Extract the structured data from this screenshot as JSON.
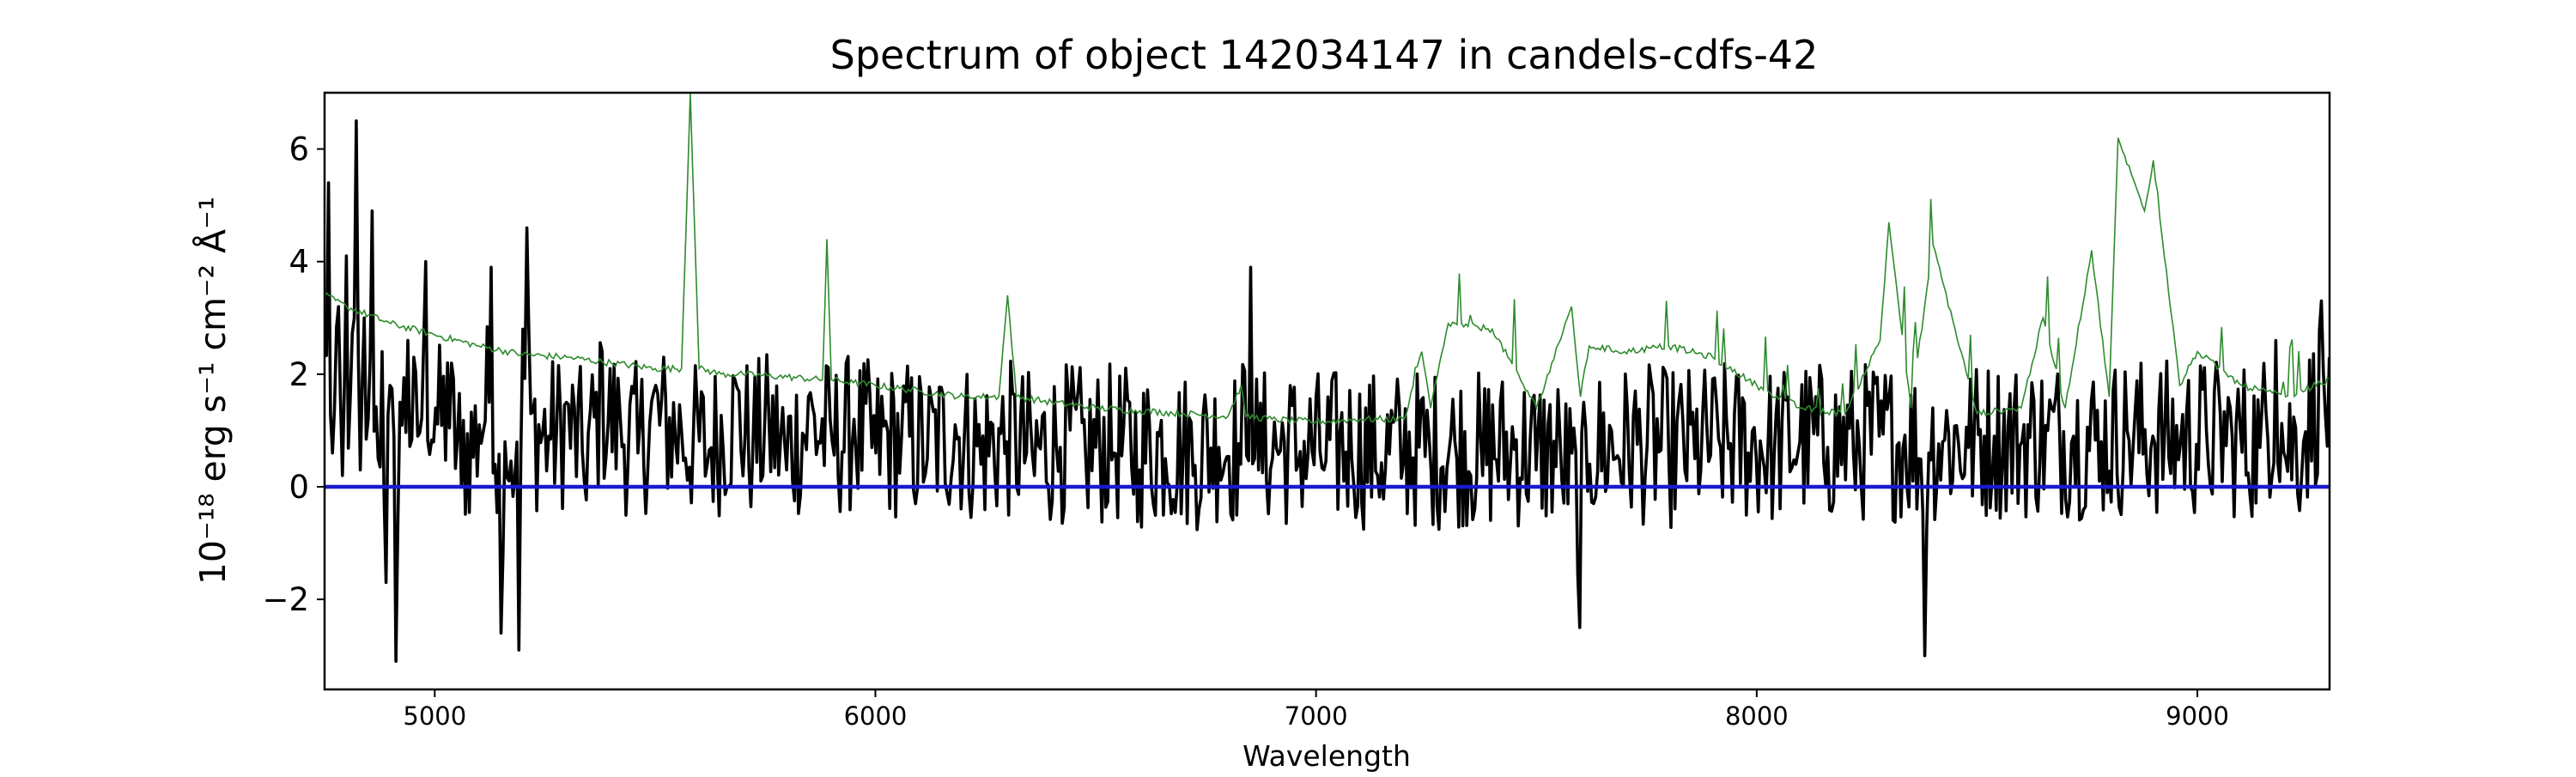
{
  "chart_data": {
    "type": "line",
    "title": "Spectrum of object 142034147 in candels-cdfs-42",
    "xlabel": "Wavelength",
    "ylabel": "10⁻¹⁸ erg s⁻¹ cm⁻² Å⁻¹",
    "xlim": [
      4750,
      9300
    ],
    "ylim": [
      -3.6,
      7.0
    ],
    "xticks": [
      5000,
      6000,
      7000,
      8000,
      9000
    ],
    "xtick_labels": [
      "5000",
      "6000",
      "7000",
      "8000",
      "9000"
    ],
    "yticks": [
      -2,
      0,
      2,
      4,
      6
    ],
    "ytick_labels": [
      "−2",
      "0",
      "2",
      "4",
      "6"
    ],
    "grid": false,
    "series": [
      {
        "key": "spectrum",
        "color": "#000000",
        "style": "noisy-flux",
        "x": [
          4750,
          4760,
          4770,
          4780,
          4790,
          4800,
          4810,
          4820,
          4830,
          4840,
          4850,
          4860,
          4870,
          4880,
          4890,
          4900,
          4910,
          4920,
          4940,
          4960,
          4980,
          5000,
          5030,
          5060,
          5100,
          5130,
          5150,
          5160,
          5180,
          5190,
          5200,
          5210,
          5220,
          5260,
          5300,
          5340,
          5380,
          5420,
          5460,
          5500,
          5560,
          5620,
          5680,
          5720,
          5760,
          5800,
          5850,
          5900,
          5950,
          6000,
          6060,
          6120,
          6180,
          6240,
          6300,
          6360,
          6420,
          6480,
          6540,
          6600,
          6660,
          6720,
          6780,
          6830,
          6850,
          6860,
          6870,
          6900,
          6960,
          7020,
          7080,
          7140,
          7200,
          7260,
          7320,
          7380,
          7440,
          7500,
          7560,
          7600,
          7620,
          7680,
          7740,
          7800,
          7860,
          7920,
          7980,
          8040,
          8100,
          8160,
          8220,
          8280,
          8330,
          8370,
          8380,
          8390,
          8420,
          8480,
          8540,
          8600,
          8660,
          8720,
          8780,
          8840,
          8900,
          8960,
          9020,
          9080,
          9140,
          9180,
          9200,
          9240,
          9280,
          9300
        ],
        "y": [
          2.5,
          5.4,
          0.6,
          3.2,
          0.2,
          4.1,
          1.6,
          6.5,
          0.3,
          3.0,
          1.2,
          4.9,
          0.5,
          2.4,
          -1.7,
          1.8,
          -3.1,
          1.5,
          2.6,
          0.9,
          4.0,
          1.4,
          2.2,
          0.0,
          1.1,
          3.9,
          -2.6,
          0.8,
          0.2,
          -2.9,
          2.8,
          4.6,
          1.3,
          0.9,
          1.5,
          0.1,
          2.4,
          1.3,
          0.6,
          1.8,
          1.0,
          0.4,
          1.9,
          0.7,
          1.3,
          0.3,
          1.6,
          0.8,
          1.2,
          0.6,
          0.9,
          0.5,
          1.1,
          0.4,
          0.8,
          0.2,
          0.7,
          0.4,
          0.6,
          0.3,
          0.5,
          0.2,
          0.7,
          0.4,
          3.9,
          0.5,
          0.3,
          0.5,
          0.4,
          0.3,
          0.5,
          0.2,
          0.4,
          0.3,
          0.5,
          0.2,
          0.4,
          0.3,
          0.1,
          -2.5,
          0.4,
          0.5,
          0.6,
          0.4,
          0.5,
          0.7,
          0.6,
          0.5,
          0.8,
          0.7,
          0.6,
          0.9,
          0.7,
          0.5,
          -3.0,
          0.6,
          0.8,
          0.7,
          0.9,
          0.8,
          1.0,
          0.9,
          0.8,
          1.0,
          0.9,
          0.8,
          1.0,
          0.9,
          0.7,
          2.6,
          0.5,
          0.8,
          3.3,
          2.3
        ]
      },
      {
        "key": "error",
        "color": "#2e8b2e",
        "style": "error-emission",
        "x": [
          4750,
          4800,
          4900,
          5000,
          5100,
          5200,
          5300,
          5400,
          5500,
          5560,
          5580,
          5600,
          5650,
          5700,
          5800,
          5880,
          5890,
          5900,
          5950,
          6000,
          6100,
          6200,
          6280,
          6300,
          6320,
          6400,
          6500,
          6600,
          6700,
          6800,
          6830,
          6840,
          6900,
          7000,
          7100,
          7200,
          7240,
          7260,
          7300,
          7400,
          7500,
          7580,
          7600,
          7620,
          7700,
          7800,
          7900,
          8000,
          8100,
          8200,
          8280,
          8300,
          8350,
          8400,
          8500,
          8600,
          8650,
          8700,
          8760,
          8800,
          8820,
          8880,
          8900,
          8960,
          9000,
          9100,
          9200,
          9300
        ],
        "y": [
          3.4,
          3.2,
          2.9,
          2.7,
          2.5,
          2.35,
          2.3,
          2.2,
          2.1,
          2.1,
          7.0,
          2.1,
          2.0,
          2.0,
          1.95,
          1.9,
          4.4,
          1.9,
          1.85,
          1.8,
          1.7,
          1.6,
          1.6,
          3.4,
          1.6,
          1.5,
          1.4,
          1.35,
          1.3,
          1.25,
          1.8,
          1.25,
          1.2,
          1.15,
          1.2,
          1.2,
          2.4,
          1.4,
          2.9,
          2.8,
          1.4,
          3.2,
          1.6,
          2.5,
          2.4,
          2.5,
          2.3,
          1.8,
          1.4,
          1.3,
          2.6,
          4.7,
          1.4,
          4.3,
          1.3,
          1.4,
          3.0,
          1.4,
          4.2,
          1.6,
          6.2,
          4.9,
          5.8,
          1.8,
          2.4,
          1.8,
          1.6,
          1.9
        ]
      },
      {
        "key": "zero",
        "color": "#1a1acc",
        "style": "flat",
        "x": [
          4750,
          9300
        ],
        "y": [
          0,
          0
        ]
      }
    ]
  }
}
